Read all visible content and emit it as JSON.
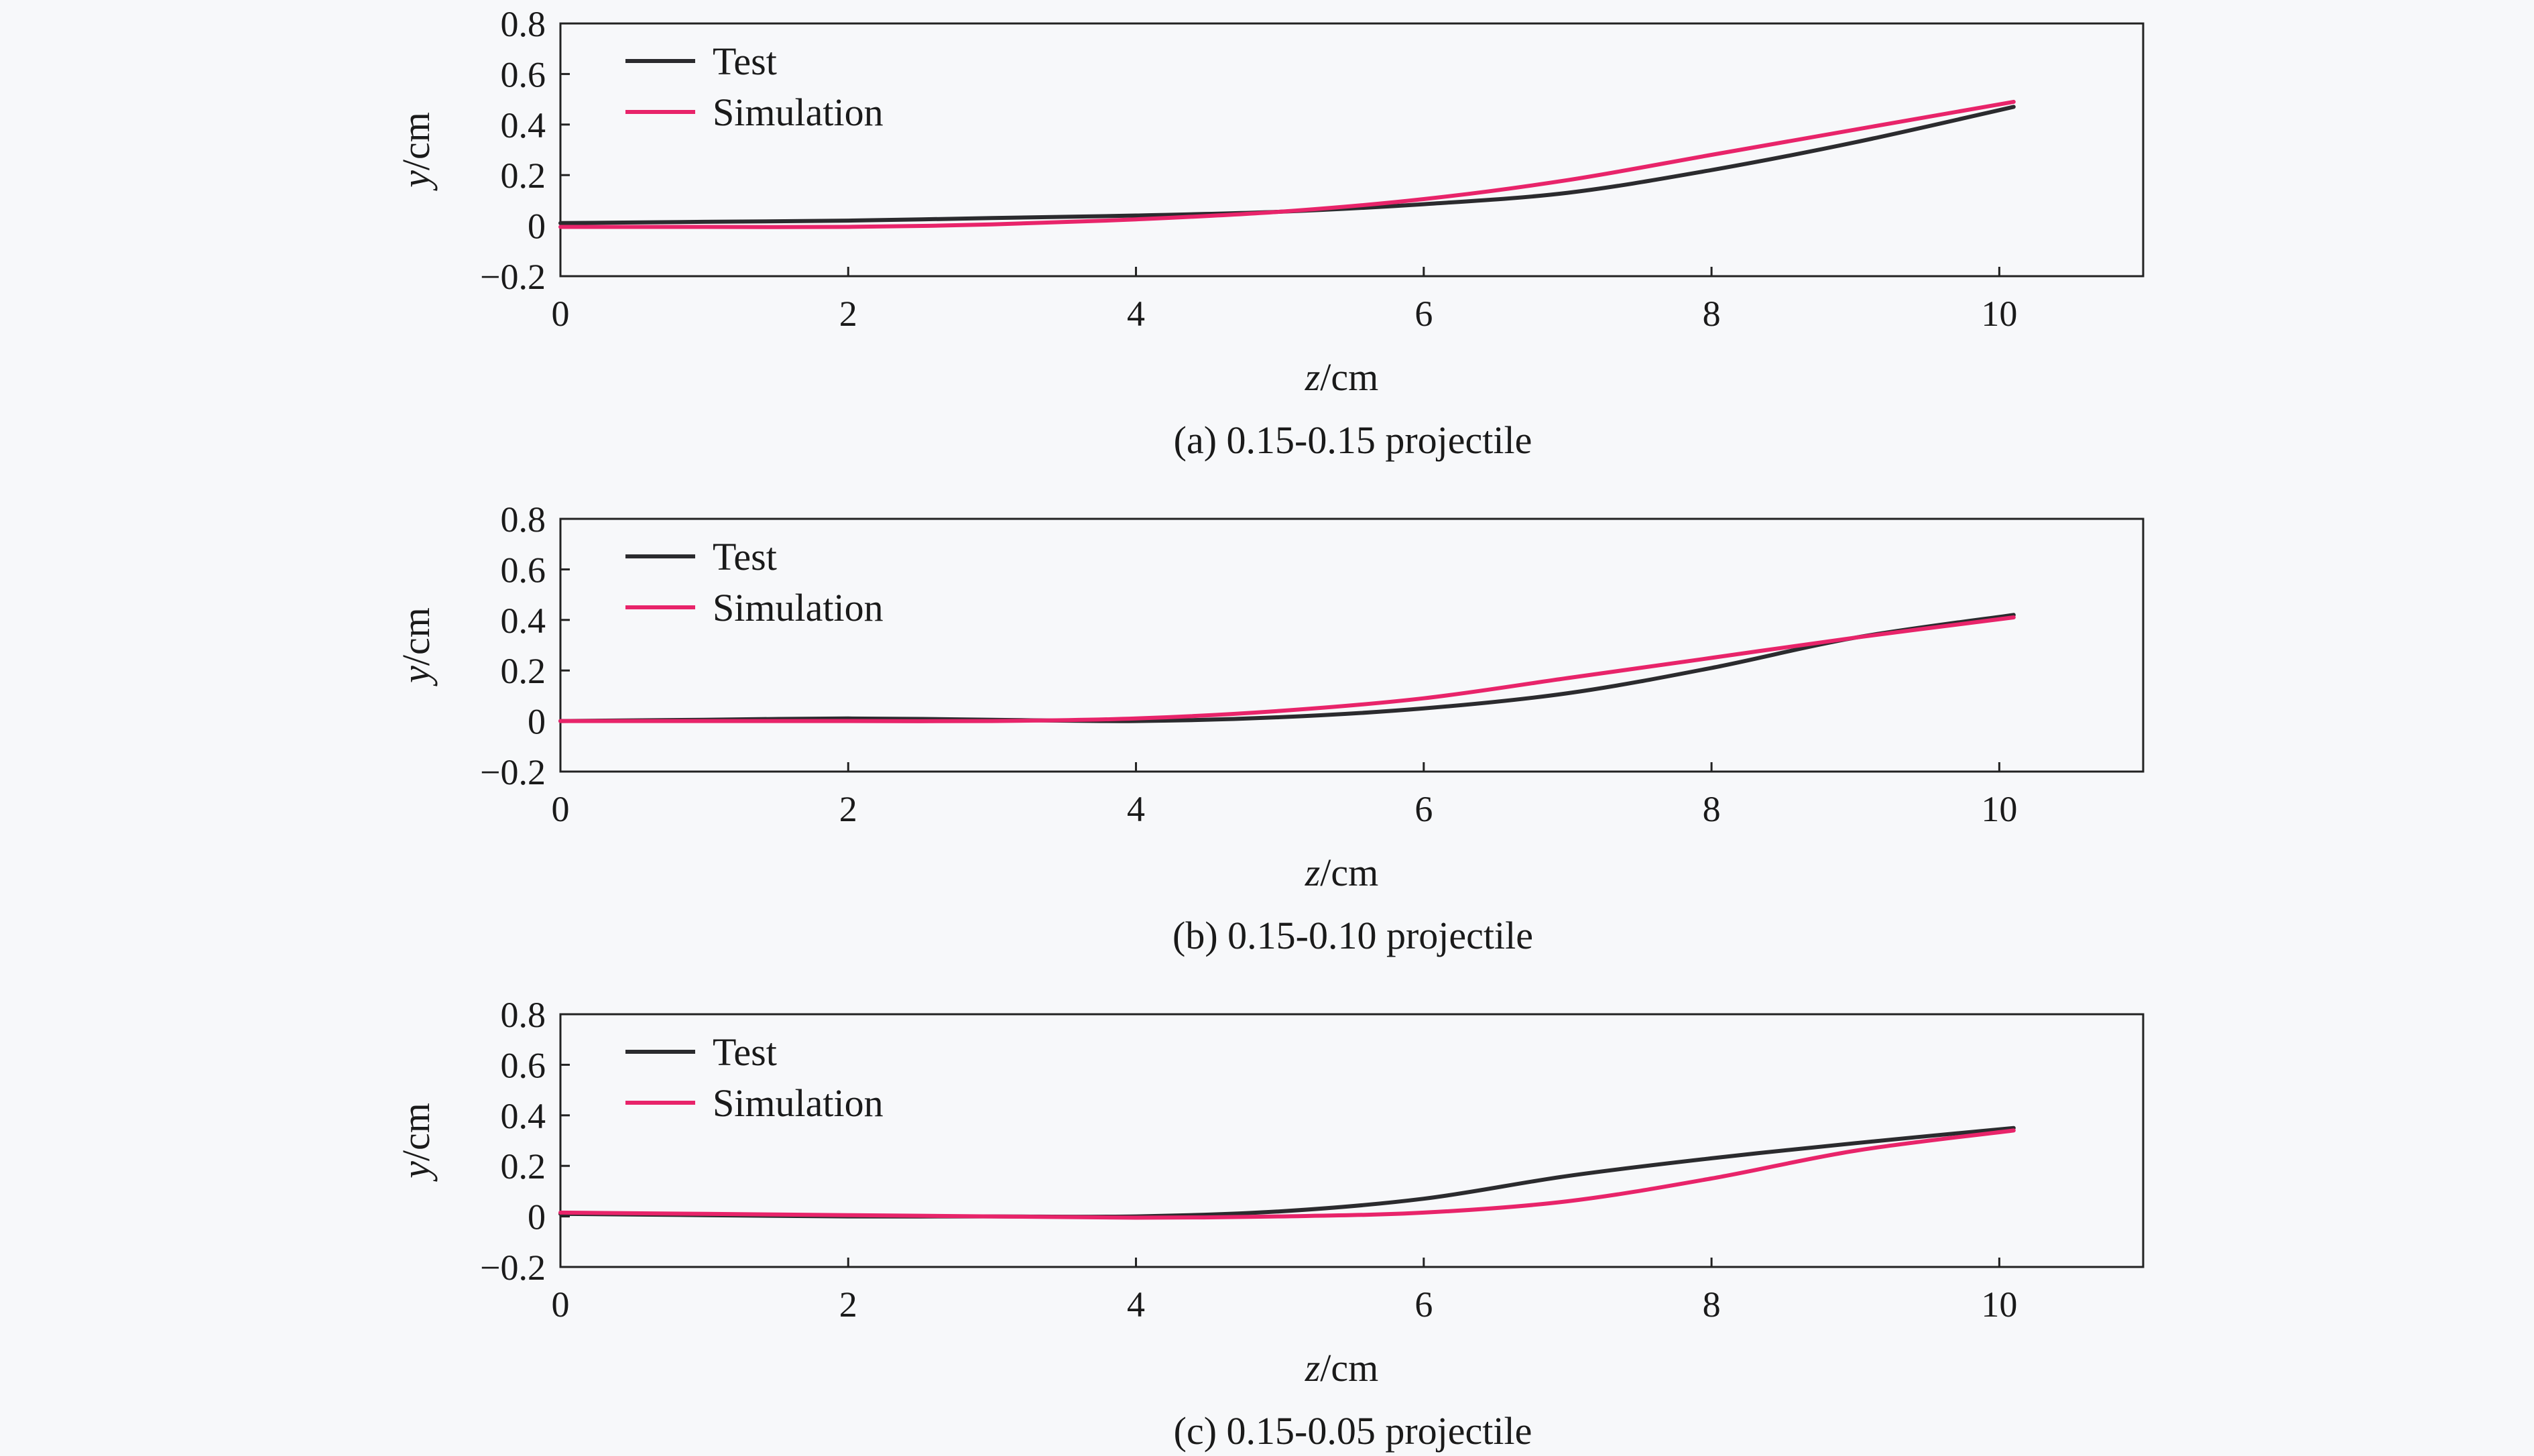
{
  "chart_data": [
    {
      "type": "line",
      "caption": "(a) 0.15-0.15 projectile",
      "xlabel": {
        "var": "z",
        "unit": "/cm"
      },
      "ylabel": {
        "var": "y",
        "unit": "/cm"
      },
      "xlim": [
        0,
        11
      ],
      "ylim": [
        -0.2,
        0.8
      ],
      "xticks": [
        0,
        2,
        4,
        6,
        8,
        10
      ],
      "xtick_labels": [
        "0",
        "2",
        "4",
        "6",
        "8",
        "10"
      ],
      "yticks": [
        -0.2,
        0,
        0.2,
        0.4,
        0.6,
        0.8
      ],
      "ytick_labels": [
        "−0.2",
        "0",
        "0.2",
        "0.4",
        "0.6",
        "0.8"
      ],
      "grid": false,
      "legend_position": "top-left",
      "series": [
        {
          "name": "Test",
          "color": "#2b2b2e",
          "x": [
            0,
            1,
            2,
            3,
            4,
            5,
            6,
            7,
            8,
            9,
            10.1
          ],
          "y": [
            0.01,
            0.015,
            0.02,
            0.03,
            0.04,
            0.055,
            0.085,
            0.13,
            0.22,
            0.33,
            0.47
          ]
        },
        {
          "name": "Simulation",
          "color": "#e8246a",
          "x": [
            0,
            1,
            2,
            3,
            4,
            5,
            6,
            7,
            8,
            9,
            10.1
          ],
          "y": [
            -0.005,
            -0.005,
            -0.005,
            0.005,
            0.025,
            0.055,
            0.105,
            0.18,
            0.28,
            0.38,
            0.49
          ]
        }
      ]
    },
    {
      "type": "line",
      "caption": "(b) 0.15-0.10 projectile",
      "xlabel": {
        "var": "z",
        "unit": "/cm"
      },
      "ylabel": {
        "var": "y",
        "unit": "/cm"
      },
      "xlim": [
        0,
        11
      ],
      "ylim": [
        -0.2,
        0.8
      ],
      "xticks": [
        0,
        2,
        4,
        6,
        8,
        10
      ],
      "xtick_labels": [
        "0",
        "2",
        "4",
        "6",
        "8",
        "10"
      ],
      "yticks": [
        -0.2,
        0,
        0.2,
        0.4,
        0.6,
        0.8
      ],
      "ytick_labels": [
        "−0.2",
        "0",
        "0.2",
        "0.4",
        "0.6",
        "0.8"
      ],
      "grid": false,
      "legend_position": "top-left",
      "series": [
        {
          "name": "Test",
          "color": "#2b2b2e",
          "x": [
            0,
            1,
            2,
            3,
            4,
            5,
            6,
            7,
            8,
            9,
            10.1
          ],
          "y": [
            0.0,
            0.005,
            0.01,
            0.005,
            0.0,
            0.015,
            0.05,
            0.11,
            0.21,
            0.33,
            0.42
          ]
        },
        {
          "name": "Simulation",
          "color": "#e8246a",
          "x": [
            0,
            1,
            2,
            3,
            4,
            5,
            6,
            7,
            8,
            9,
            10.1
          ],
          "y": [
            0.0,
            0.0,
            0.0,
            0.0,
            0.01,
            0.04,
            0.09,
            0.17,
            0.25,
            0.33,
            0.41
          ]
        }
      ]
    },
    {
      "type": "line",
      "caption": "(c) 0.15-0.05 projectile",
      "xlabel": {
        "var": "z",
        "unit": "/cm"
      },
      "ylabel": {
        "var": "y",
        "unit": "/cm"
      },
      "xlim": [
        0,
        11
      ],
      "ylim": [
        -0.2,
        0.8
      ],
      "xticks": [
        0,
        2,
        4,
        6,
        8,
        10
      ],
      "xtick_labels": [
        "0",
        "2",
        "4",
        "6",
        "8",
        "10"
      ],
      "yticks": [
        -0.2,
        0,
        0.2,
        0.4,
        0.6,
        0.8
      ],
      "ytick_labels": [
        "−0.2",
        "0",
        "0.2",
        "0.4",
        "0.6",
        "0.8"
      ],
      "grid": false,
      "legend_position": "top-left",
      "series": [
        {
          "name": "Test",
          "color": "#2b2b2e",
          "x": [
            0,
            1,
            2,
            3,
            4,
            5,
            6,
            7,
            8,
            9,
            10.1
          ],
          "y": [
            0.01,
            0.005,
            0.0,
            0.0,
            0.0,
            0.02,
            0.07,
            0.16,
            0.23,
            0.29,
            0.35
          ]
        },
        {
          "name": "Simulation",
          "color": "#e8246a",
          "x": [
            0,
            1,
            2,
            3,
            4,
            5,
            6,
            7,
            8,
            9,
            10.1
          ],
          "y": [
            0.015,
            0.01,
            0.005,
            0.0,
            -0.005,
            0.0,
            0.015,
            0.06,
            0.15,
            0.26,
            0.34
          ]
        }
      ]
    }
  ]
}
